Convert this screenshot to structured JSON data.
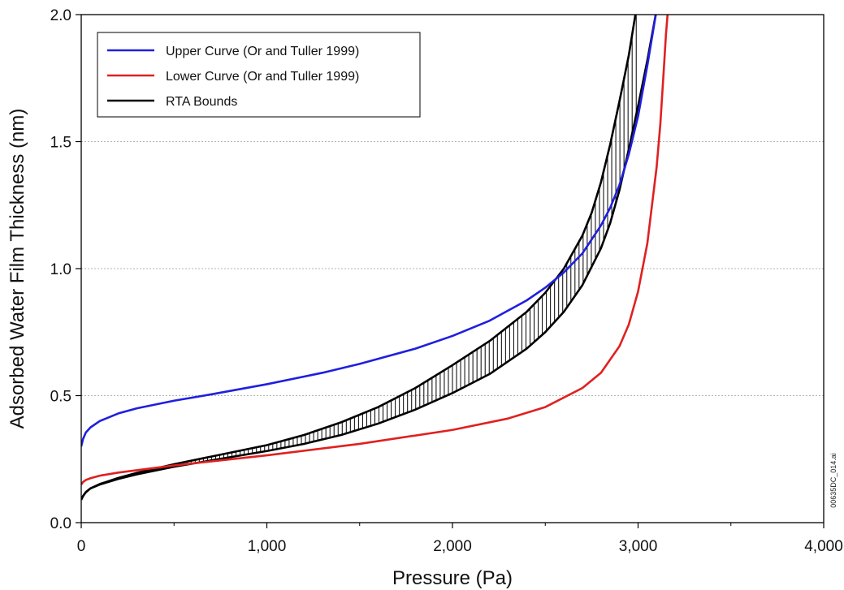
{
  "chart_data": {
    "type": "line",
    "title": "",
    "xlabel": "Pressure (Pa)",
    "ylabel": "Adsorbed Water Film Thickness (nm)",
    "xlim": [
      0,
      4000
    ],
    "ylim": [
      0,
      2.0
    ],
    "x_ticks": [
      0,
      1000,
      2000,
      3000,
      4000
    ],
    "x_tick_labels": [
      "0",
      "1,000",
      "2,000",
      "3,000",
      "4,000"
    ],
    "y_ticks": [
      0,
      0.5,
      1.0,
      1.5,
      2.0
    ],
    "y_tick_labels": [
      "0.0",
      "0.5",
      "1.0",
      "1.5",
      "2.0"
    ],
    "grid": "horizontal dotted",
    "legend_position": "top-left",
    "series": [
      {
        "name": "Upper Curve (Or and Tuller 1999)",
        "color": "#1f1fe0",
        "x": [
          0,
          10,
          25,
          50,
          100,
          200,
          300,
          500,
          700,
          1000,
          1300,
          1500,
          1800,
          2000,
          2200,
          2400,
          2500,
          2600,
          2700,
          2800,
          2850,
          2900,
          2950,
          3000,
          3050,
          3100
        ],
        "y": [
          0.3,
          0.33,
          0.355,
          0.375,
          0.4,
          0.43,
          0.45,
          0.48,
          0.505,
          0.545,
          0.59,
          0.625,
          0.685,
          0.735,
          0.795,
          0.875,
          0.925,
          0.985,
          1.06,
          1.17,
          1.24,
          1.33,
          1.45,
          1.6,
          1.8,
          2.02
        ]
      },
      {
        "name": "Lower Curve (Or and Tuller 1999)",
        "color": "#e02020",
        "x": [
          0,
          10,
          25,
          50,
          100,
          200,
          500,
          1000,
          1500,
          2000,
          2300,
          2500,
          2700,
          2800,
          2900,
          2950,
          3000,
          3050,
          3100,
          3120,
          3140,
          3150,
          3160,
          3170
        ],
        "y": [
          0.15,
          0.16,
          0.168,
          0.175,
          0.185,
          0.197,
          0.225,
          0.265,
          0.31,
          0.365,
          0.41,
          0.455,
          0.53,
          0.59,
          0.695,
          0.78,
          0.91,
          1.1,
          1.4,
          1.57,
          1.8,
          1.92,
          2.01,
          2.05
        ]
      },
      {
        "name": "RTA Bounds",
        "color": "#000000",
        "bounds": [
          {
            "x": [
              0,
              10,
              25,
              50,
              100,
              200,
              300,
              500,
              700,
              1000,
              1200,
              1400,
              1600,
              1800,
              2000,
              2200,
              2400,
              2500,
              2600,
              2700,
              2800,
              2850,
              2900,
              2950,
              3000,
              3050,
              3100
            ],
            "y": [
              0.09,
              0.105,
              0.12,
              0.135,
              0.15,
              0.172,
              0.19,
              0.22,
              0.245,
              0.282,
              0.31,
              0.345,
              0.39,
              0.445,
              0.51,
              0.585,
              0.685,
              0.75,
              0.83,
              0.935,
              1.08,
              1.18,
              1.31,
              1.47,
              1.64,
              1.82,
              2.02
            ]
          },
          {
            "x": [
              0,
              10,
              25,
              50,
              100,
              200,
              300,
              500,
              700,
              1000,
              1200,
              1400,
              1600,
              1800,
              2000,
              2200,
              2400,
              2500,
              2600,
              2700,
              2750,
              2800,
              2850,
              2900,
              2950,
              2970,
              2990,
              3000
            ],
            "y": [
              0.09,
              0.105,
              0.12,
              0.135,
              0.152,
              0.176,
              0.196,
              0.23,
              0.26,
              0.305,
              0.345,
              0.395,
              0.455,
              0.53,
              0.62,
              0.715,
              0.83,
              0.905,
              1.0,
              1.13,
              1.22,
              1.34,
              1.49,
              1.66,
              1.84,
              1.93,
              2.02,
              2.06
            ]
          }
        ],
        "hatched": true
      }
    ]
  },
  "side_note": "00635DC_014.ai"
}
